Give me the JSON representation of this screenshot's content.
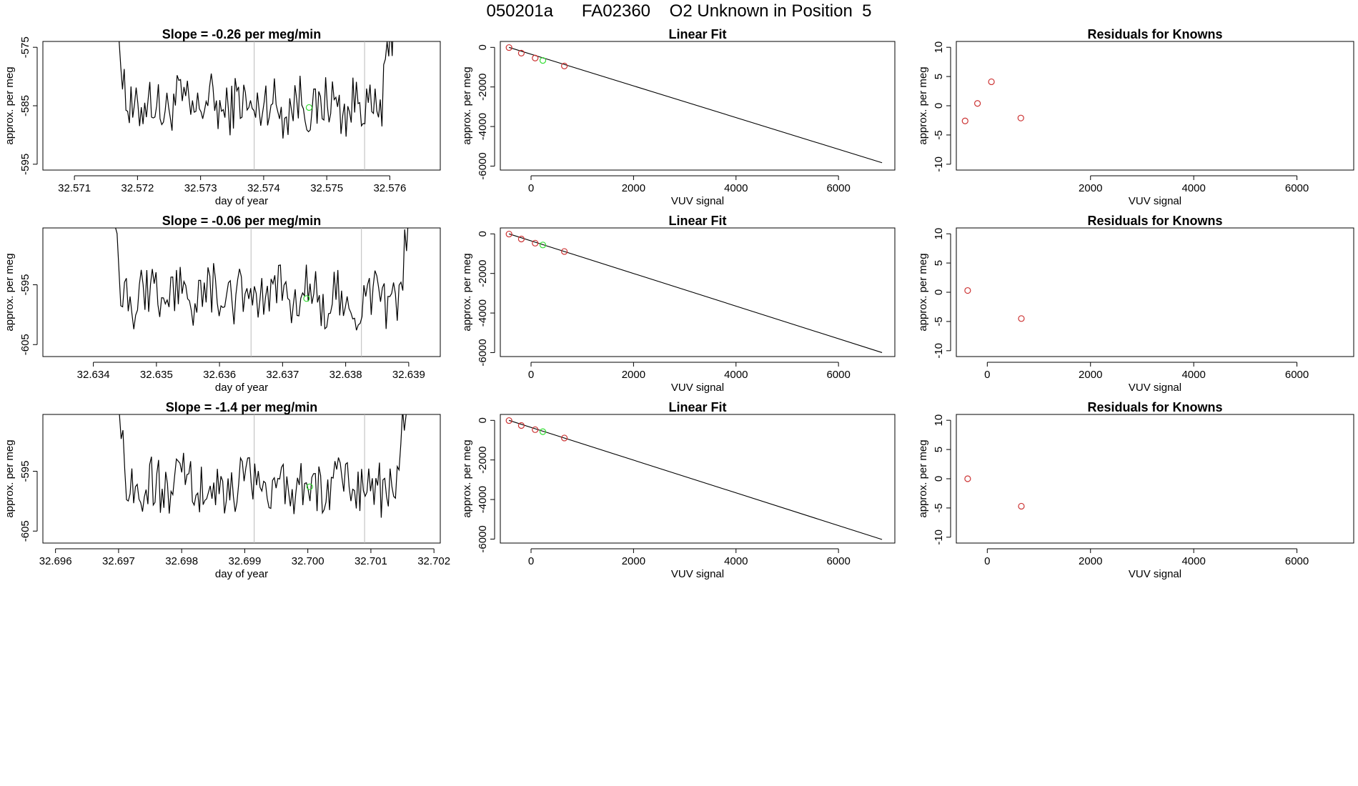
{
  "figure_title": "050201a      FA02360    O2 Unknown in Position  5",
  "colors": {
    "trace": "#000000",
    "known": "#cc3333",
    "unknown": "#33dd33",
    "vline": "#bbbbbb",
    "fit": "#000000"
  },
  "chart_data": [
    {
      "type": "line",
      "row": 1,
      "col": 1,
      "title": "Slope =  -0.26  per meg/min",
      "xlabel": "day of year",
      "ylabel": "approx. per meg",
      "xlim": [
        32.5705,
        32.5768
      ],
      "ylim": [
        -596,
        -574
      ],
      "xticks": [
        32.571,
        32.572,
        32.573,
        32.574,
        32.575,
        32.576
      ],
      "xtick_labels": [
        "32.571",
        "32.572",
        "32.573",
        "32.574",
        "32.575",
        "32.576"
      ],
      "yticks": [
        -575,
        -585,
        -595
      ],
      "ytick_labels": [
        "-575",
        "-585",
        "-595"
      ],
      "trace_start": 32.5716,
      "trace_end": 32.5762,
      "trace_base": -585,
      "vlines": [
        32.57385,
        32.5756
      ],
      "unknown_point": [
        32.57472,
        -585.3
      ]
    },
    {
      "type": "scatter",
      "row": 1,
      "col": 2,
      "title": "Linear Fit",
      "xlabel": "VUV signal",
      "ylabel": "approx. per meg",
      "xlim": [
        -600,
        7100
      ],
      "ylim": [
        -6200,
        300
      ],
      "xticks": [
        0,
        2000,
        4000,
        6000
      ],
      "xtick_labels": [
        "0",
        "2000",
        "4000",
        "6000"
      ],
      "yticks": [
        0,
        -2000,
        -4000,
        -6000
      ],
      "ytick_labels": [
        "0",
        "-2000",
        "-4000",
        "-6000"
      ],
      "fit_line": [
        [
          -430,
          0
        ],
        [
          6850,
          -5830
        ]
      ],
      "known_points": [
        [
          -430,
          -10
        ],
        [
          -190,
          -290
        ],
        [
          80,
          -540
        ],
        [
          650,
          -940
        ]
      ],
      "unknown_points": [
        [
          230,
          -660
        ]
      ]
    },
    {
      "type": "scatter",
      "row": 1,
      "col": 3,
      "title": "Residuals for Knowns",
      "xlabel": "VUV signal",
      "ylabel": "approx. per meg",
      "xlim": [
        -600,
        7100
      ],
      "ylim": [
        -11,
        11
      ],
      "xticks": [
        2000,
        4000,
        6000
      ],
      "xtick_labels": [
        "2000",
        "4000",
        "6000"
      ],
      "yticks": [
        10,
        5,
        0,
        -5,
        -10
      ],
      "ytick_labels": [
        "10",
        "5",
        "0",
        "-5",
        "-10"
      ],
      "known_points": [
        [
          -430,
          -2.6
        ],
        [
          -190,
          0.4
        ],
        [
          80,
          4.1
        ],
        [
          650,
          -2.1
        ]
      ]
    },
    {
      "type": "line",
      "row": 2,
      "col": 1,
      "title": "Slope =  -0.06  per meg/min",
      "xlabel": "day of year",
      "ylabel": "approx. per meg",
      "xlim": [
        32.6332,
        32.6395
      ],
      "ylim": [
        -607,
        -585.5
      ],
      "xticks": [
        32.634,
        32.635,
        32.636,
        32.637,
        32.638,
        32.639
      ],
      "xtick_labels": [
        "32.634",
        "32.635",
        "32.636",
        "32.637",
        "32.638",
        "32.639"
      ],
      "yticks": [
        -595,
        -605
      ],
      "ytick_labels": [
        "-595",
        "-605"
      ],
      "trace_start": 32.6342,
      "trace_end": 32.6392,
      "trace_base": -597,
      "vlines": [
        32.6365,
        32.63825
      ],
      "unknown_point": [
        32.63738,
        -597.3
      ]
    },
    {
      "type": "scatter",
      "row": 2,
      "col": 2,
      "title": "Linear Fit",
      "xlabel": "VUV signal",
      "ylabel": "approx. per meg",
      "xlim": [
        -600,
        7100
      ],
      "ylim": [
        -6200,
        300
      ],
      "xticks": [
        0,
        2000,
        4000,
        6000
      ],
      "xtick_labels": [
        "0",
        "2000",
        "4000",
        "6000"
      ],
      "yticks": [
        0,
        -2000,
        -4000,
        -6000
      ],
      "ytick_labels": [
        "0",
        "-2000",
        "-4000",
        "-6000"
      ],
      "fit_line": [
        [
          -430,
          0
        ],
        [
          6850,
          -6000
        ]
      ],
      "known_points": [
        [
          -430,
          -10
        ],
        [
          -190,
          -260
        ],
        [
          80,
          -470
        ],
        [
          650,
          -890
        ]
      ],
      "unknown_points": [
        [
          230,
          -560
        ]
      ]
    },
    {
      "type": "scatter",
      "row": 2,
      "col": 3,
      "title": "Residuals for Knowns",
      "xlabel": "VUV signal",
      "ylabel": "approx. per meg",
      "xlim": [
        -600,
        7100
      ],
      "ylim": [
        -11,
        11
      ],
      "xticks": [
        0,
        2000,
        4000,
        6000
      ],
      "xtick_labels": [
        "0",
        "2000",
        "4000",
        "6000"
      ],
      "yticks": [
        10,
        5,
        0,
        -5,
        -10
      ],
      "ytick_labels": [
        "10",
        "5",
        "0",
        "-5",
        "-10"
      ],
      "known_points": [
        [
          -380,
          0.3
        ],
        [
          660,
          -4.5
        ]
      ]
    },
    {
      "type": "line",
      "row": 3,
      "col": 1,
      "title": "Slope =  -1.4  per meg/min",
      "xlabel": "day of year",
      "ylabel": "approx. per meg",
      "xlim": [
        32.6958,
        32.7021
      ],
      "ylim": [
        -607,
        -585.5
      ],
      "xticks": [
        32.696,
        32.697,
        32.698,
        32.699,
        32.7,
        32.701,
        32.702
      ],
      "xtick_labels": [
        "32.696",
        "32.697",
        "32.698",
        "32.699",
        "32.700",
        "32.701",
        "32.702"
      ],
      "yticks": [
        -595,
        -605
      ],
      "ytick_labels": [
        "-595",
        "-605"
      ],
      "trace_start": 32.6969,
      "trace_end": 32.7017,
      "trace_base": -597.5,
      "vlines": [
        32.69915,
        32.7009
      ],
      "unknown_point": [
        32.70003,
        -597.6
      ]
    },
    {
      "type": "scatter",
      "row": 3,
      "col": 2,
      "title": "Linear Fit",
      "xlabel": "VUV signal",
      "ylabel": "approx. per meg",
      "xlim": [
        -600,
        7100
      ],
      "ylim": [
        -6200,
        300
      ],
      "xticks": [
        0,
        2000,
        4000,
        6000
      ],
      "xtick_labels": [
        "0",
        "2000",
        "4000",
        "6000"
      ],
      "yticks": [
        0,
        -2000,
        -4000,
        -6000
      ],
      "ytick_labels": [
        "0",
        "-2000",
        "-4000",
        "-6000"
      ],
      "fit_line": [
        [
          -430,
          0
        ],
        [
          6850,
          -6020
        ]
      ],
      "known_points": [
        [
          -430,
          -10
        ],
        [
          -190,
          -260
        ],
        [
          80,
          -470
        ],
        [
          650,
          -890
        ]
      ],
      "unknown_points": [
        [
          230,
          -570
        ]
      ]
    },
    {
      "type": "scatter",
      "row": 3,
      "col": 3,
      "title": "Residuals for Knowns",
      "xlabel": "VUV signal",
      "ylabel": "approx. per meg",
      "xlim": [
        -600,
        7100
      ],
      "ylim": [
        -11,
        11
      ],
      "xticks": [
        0,
        2000,
        4000,
        6000
      ],
      "xtick_labels": [
        "0",
        "2000",
        "4000",
        "6000"
      ],
      "yticks": [
        10,
        5,
        0,
        -5,
        -10
      ],
      "ytick_labels": [
        "10",
        "5",
        "0",
        "-5",
        "-10"
      ],
      "known_points": [
        [
          -380,
          0
        ],
        [
          660,
          -4.7
        ]
      ]
    }
  ]
}
